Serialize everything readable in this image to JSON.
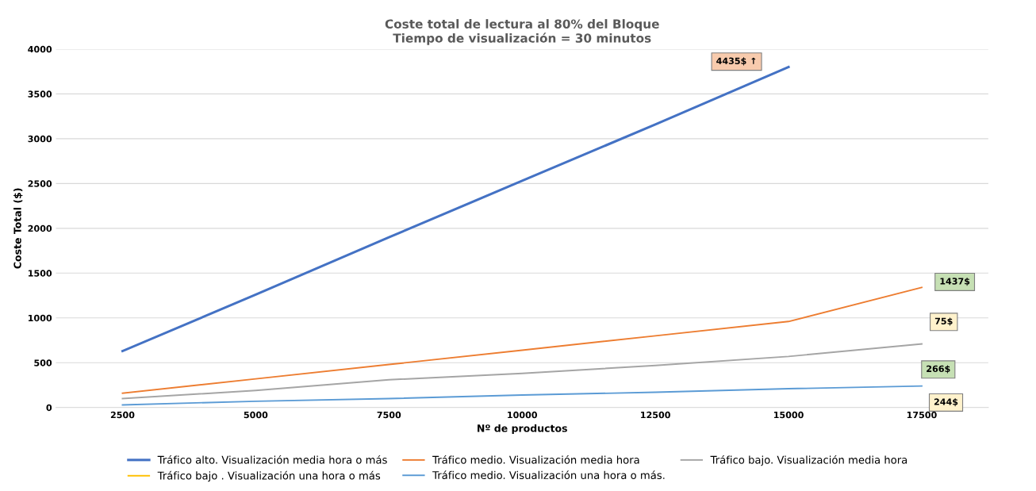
{
  "chart_data": {
    "type": "line",
    "title": "Coste total de lectura al 80% del Bloque\nTiempo de visualización = 30 minutos",
    "xlabel": "Nº de productos",
    "ylabel": "Coste Total ($)",
    "categories": [
      "2500",
      "5000",
      "7500",
      "10000",
      "12500",
      "15000",
      "17500"
    ],
    "series": [
      {
        "name": "Tráfico alto. Visualización media hora o más",
        "color": "#4472c4",
        "values": [
          630,
          1260,
          1900,
          2530,
          3160,
          3800,
          null
        ]
      },
      {
        "name": "Tráfico medio. Visualización media hora",
        "color": "#ed7d31",
        "values": [
          160,
          320,
          480,
          640,
          800,
          960,
          1340
        ]
      },
      {
        "name": "Tráfico bajo. Visualización media hora",
        "color": "#a5a5a5",
        "values": [
          100,
          190,
          310,
          380,
          470,
          570,
          710
        ]
      },
      {
        "name": "Tráfico bajo . Visualización una hora o más",
        "color": "#ffc000",
        "values": [
          null,
          null,
          null,
          null,
          null,
          null,
          null
        ]
      },
      {
        "name": "Tráfico medio. Visualización una hora o más.",
        "color": "#5b9bd5",
        "values": [
          30,
          70,
          100,
          140,
          170,
          210,
          240
        ]
      }
    ],
    "ylim": [
      0,
      4000
    ],
    "yticks": [
      0,
      500,
      1000,
      1500,
      2000,
      2500,
      3000,
      3500,
      4000
    ],
    "grid": "y",
    "legend": "bottom",
    "marker": "none",
    "line_style": "solid",
    "annotations": [
      "4435$ ↑",
      {
        "text": "1437$",
        "x": "17500",
        "y": 1340
      },
      {
        "text": "75$",
        "x": "17500",
        "y": 710
      },
      {
        "text": "266$",
        "x": "17500",
        "y": 240
      },
      {
        "text": "244$",
        "x": "17500",
        "y": 240
      }
    ]
  }
}
